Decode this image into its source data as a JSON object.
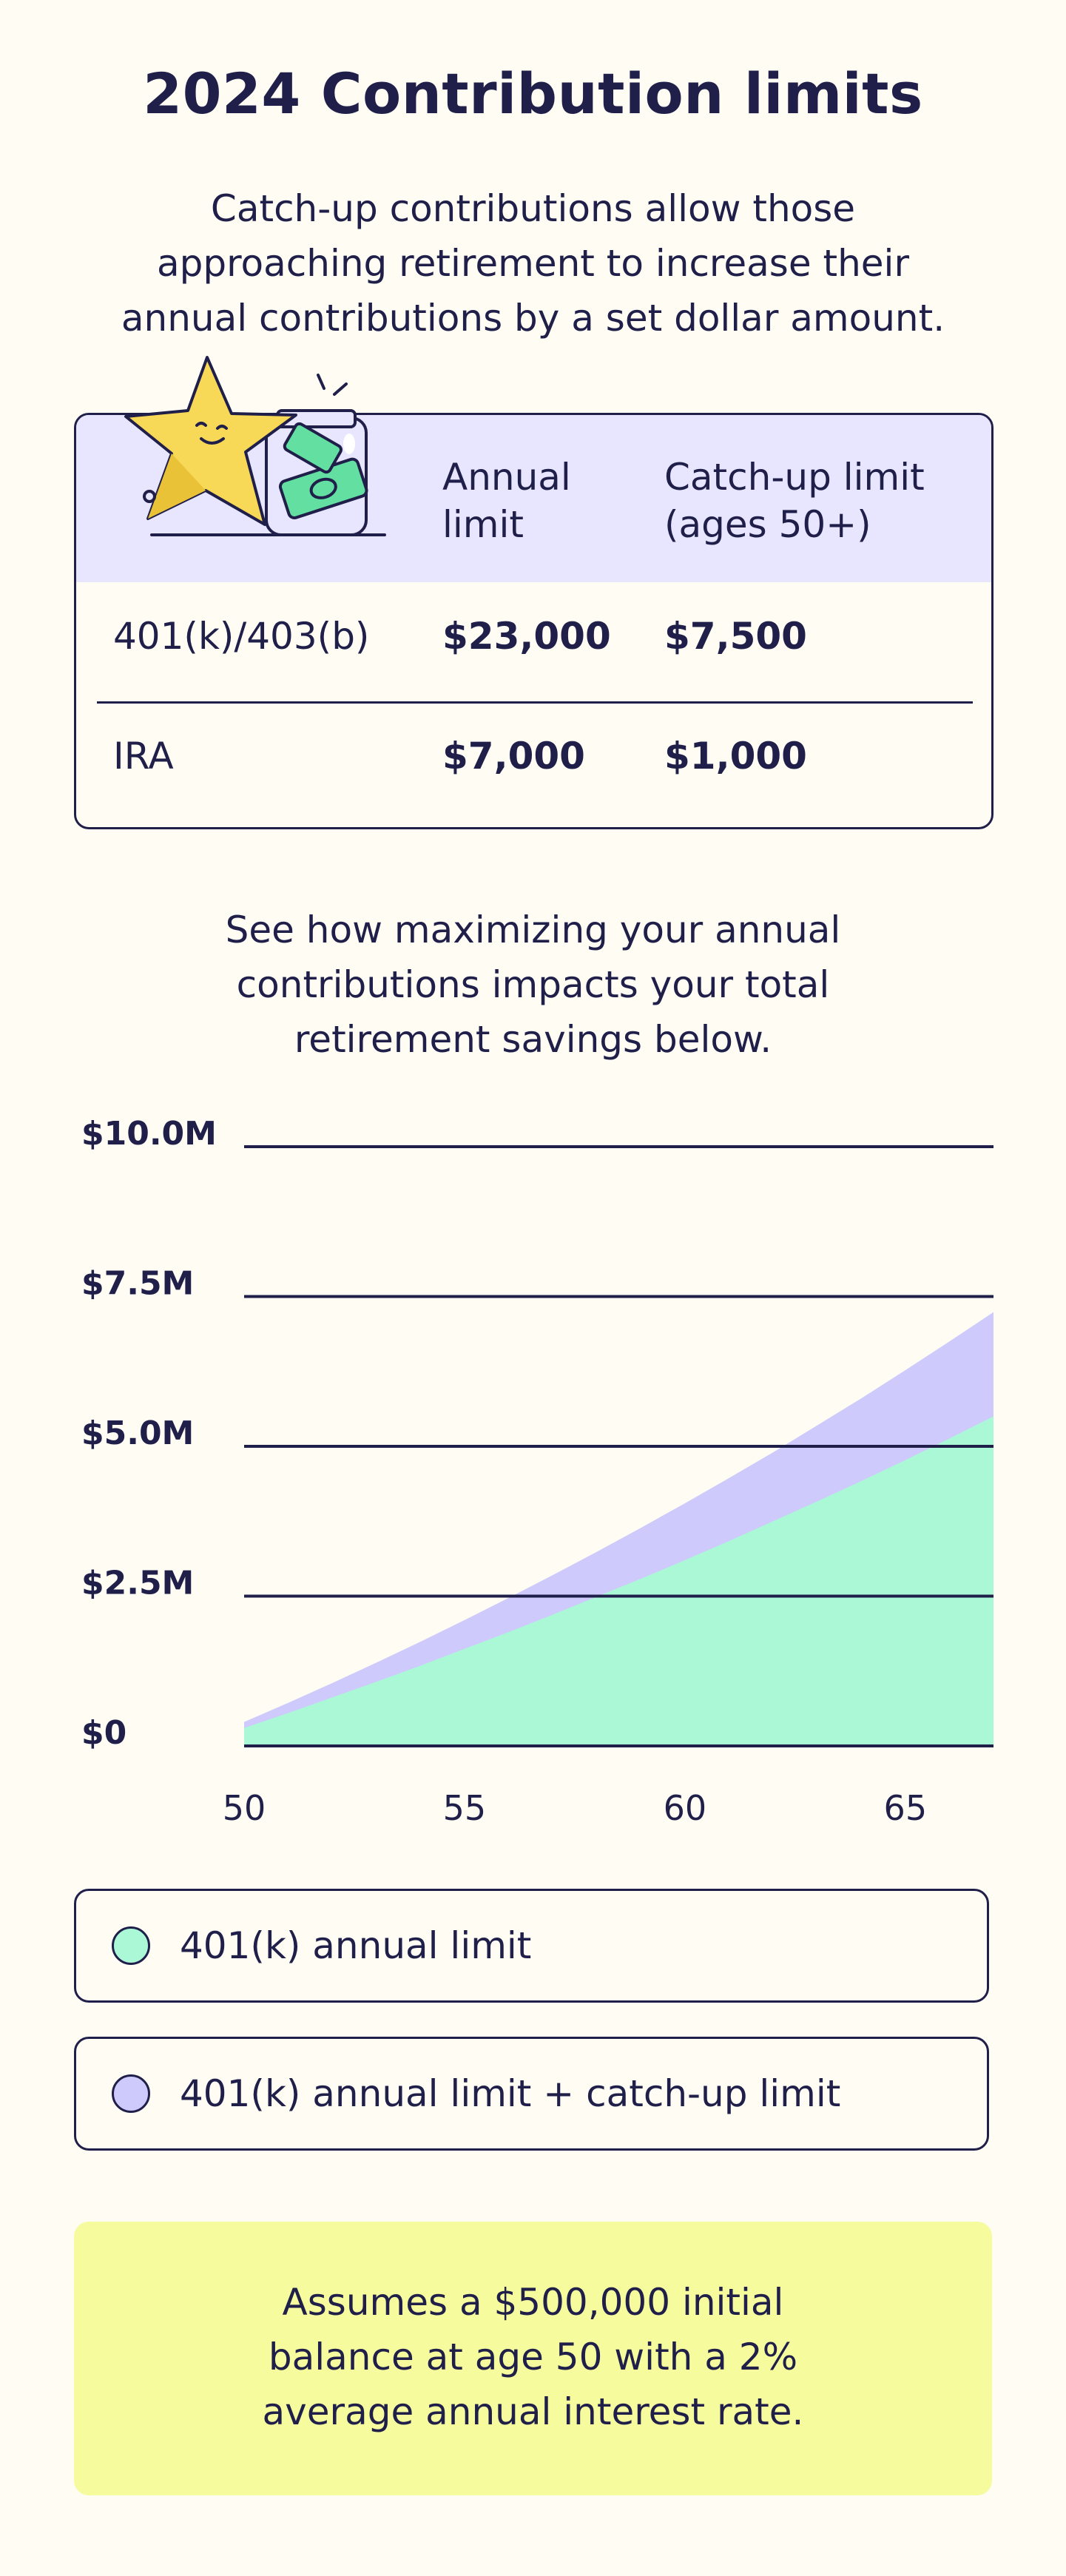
{
  "title": "2024 Contribution limits",
  "intro": [
    "Catch-up contributions allow those",
    "approaching retirement to increase their",
    "annual contributions by a set dollar amount."
  ],
  "table": {
    "headers": {
      "annual": [
        "Annual",
        "limit"
      ],
      "catchup": [
        "Catch-up limit",
        "(ages 50+)"
      ]
    },
    "rows": [
      {
        "label": "401(k)/403(b)",
        "annual": "$23,000",
        "catchup": "$7,500"
      },
      {
        "label": "IRA",
        "annual": "$7,000",
        "catchup": "$1,000"
      }
    ]
  },
  "mid_text": [
    "See how maximizing your annual",
    "contributions impacts your total",
    "retirement savings below."
  ],
  "chart_data": {
    "type": "area",
    "x": [
      50,
      51,
      52,
      53,
      54,
      55,
      56,
      57,
      58,
      59,
      60,
      61,
      62,
      63,
      64,
      65,
      66,
      67
    ],
    "series": [
      {
        "name": "401(k) annual limit + catch-up limit",
        "values": [
          0.4,
          0.72,
          1.05,
          1.39,
          1.74,
          2.1,
          2.47,
          2.85,
          3.24,
          3.64,
          4.05,
          4.47,
          4.9,
          5.35,
          5.8,
          6.27,
          6.75,
          7.24
        ]
      },
      {
        "name": "401(k) annual limit",
        "values": [
          0.3,
          0.55,
          0.81,
          1.07,
          1.34,
          1.62,
          1.9,
          2.19,
          2.49,
          2.79,
          3.1,
          3.42,
          3.75,
          4.08,
          4.42,
          4.77,
          5.13,
          5.5
        ]
      }
    ],
    "yticks": [
      "$0",
      "$2.5M",
      "$5.0M",
      "$7.5M",
      "$10.0M"
    ],
    "ytick_values": [
      0,
      2.5,
      5,
      7.5,
      10
    ],
    "xticks": [
      50,
      55,
      60,
      65
    ],
    "ylim": [
      0,
      10
    ],
    "xlim": [
      50,
      67
    ],
    "grid": true,
    "colors": {
      "base": "#abf8d7",
      "catchup": "#cecafb",
      "line": "#1f1f4a"
    }
  },
  "legend": [
    {
      "label": "401(k) annual limit",
      "color": "#abf8d7"
    },
    {
      "label": "401(k) annual limit + catch-up limit",
      "color": "#cecafb"
    }
  ],
  "note": [
    "Assumes a $500,000 initial",
    "balance at age 50 with a 2%",
    "average annual interest rate."
  ]
}
